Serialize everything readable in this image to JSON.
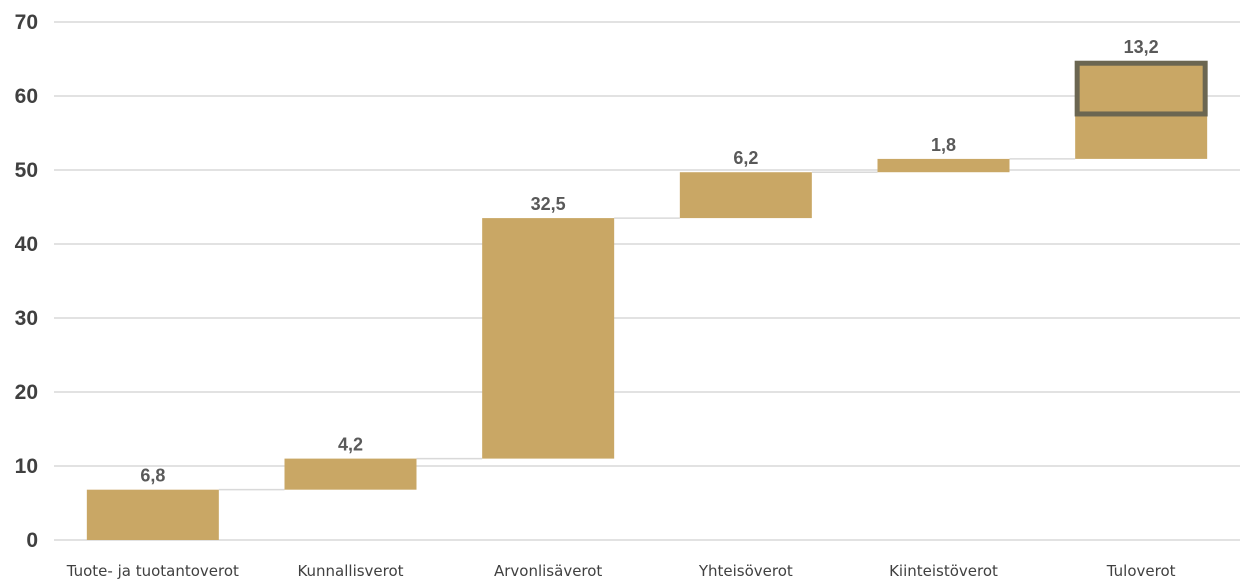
{
  "chart_data": {
    "type": "bar",
    "subtype": "waterfall",
    "categories": [
      "Tuote- ja tuotantoverot",
      "Kunnallisverot",
      "Arvonlisäverot",
      "Yhteisöverot",
      "Kiinteistöverot",
      "Tuloverot"
    ],
    "values": [
      6.8,
      4.2,
      32.5,
      6.2,
      1.8,
      13.2
    ],
    "data_labels": [
      "6,8",
      "4,2",
      "32,5",
      "6,2",
      "1,8",
      "13,2"
    ],
    "title": "",
    "xlabel": "",
    "ylabel": "",
    "ylim": [
      0,
      70
    ],
    "yticks": [
      0,
      10,
      20,
      30,
      40,
      50,
      60,
      70
    ],
    "grid": true,
    "legend": "none",
    "highlighted_category": "Tuloverot",
    "colors": {
      "bar": "#c9a765",
      "highlight_border": "#6b6651",
      "grid": "#d9d9d9",
      "connector": "#d9d9d9",
      "tick_text": "#404040",
      "label_text": "#595959"
    }
  }
}
